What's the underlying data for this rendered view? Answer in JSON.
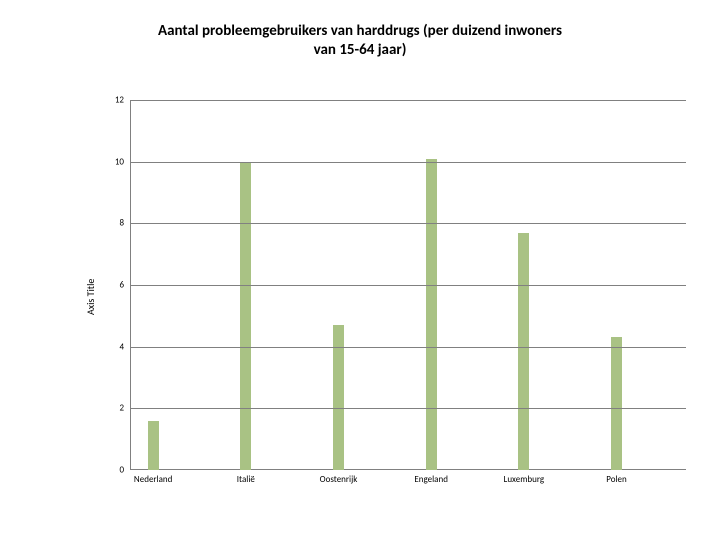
{
  "title": {
    "line1": "Aantal probleemgebruikers van harddrugs (per duizend inwoners",
    "line2": "van 15-64 jaar)",
    "fontsize": 15,
    "fontweight": 700,
    "color": "#000000"
  },
  "ylabel": {
    "text": "Axis Title",
    "fontsize": 10,
    "color": "#000000"
  },
  "chart": {
    "type": "bar",
    "categories": [
      "Nederland",
      "Italië",
      "Oostenrijk",
      "Engeland",
      "Luxemburg",
      "Polen"
    ],
    "values": [
      1.6,
      10.0,
      4.7,
      10.1,
      7.7,
      4.3
    ],
    "bar_color": "#a9c284",
    "bar_width": 0.12,
    "ylim": [
      0,
      12
    ],
    "ytick_step": 2,
    "yticks": [
      0,
      2,
      4,
      6,
      8,
      10,
      12
    ],
    "tick_fontsize": 9,
    "xtick_fontsize": 9,
    "grid_color": "#808080",
    "axis_color": "#808080",
    "grid_show": true,
    "background_color": "#ffffff",
    "xtick_margin_top": 4
  }
}
